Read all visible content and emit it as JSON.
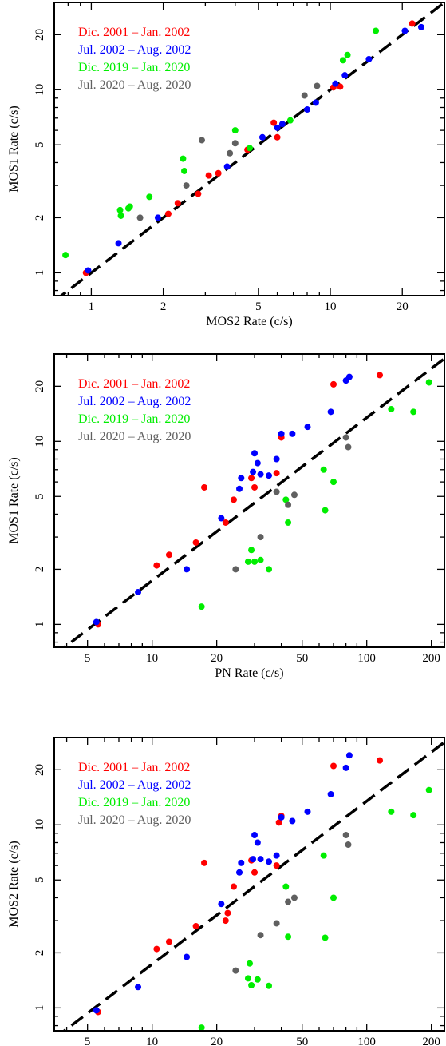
{
  "chart_data": [
    {
      "type": "scatter",
      "xlabel": "MOS2 Rate (c/s)",
      "ylabel": "MOS1 Rate (c/s)",
      "xscale": "log",
      "yscale": "log",
      "xlim": [
        0.7,
        30
      ],
      "ylim": [
        0.75,
        30
      ],
      "xticks": [
        1,
        2,
        5,
        10,
        20
      ],
      "yticks": [
        1,
        2,
        5,
        10,
        20
      ],
      "reference_line": "y = x",
      "grid": false,
      "legend_position": "top-left",
      "series": [
        {
          "name": "Dic. 2001 – Jan. 2002",
          "color": "#ff0000",
          "x": [
            0.95,
            2.1,
            2.3,
            2.8,
            3.1,
            3.4,
            4.5,
            5.8,
            6.0,
            10.3,
            11.0,
            22.0
          ],
          "y": [
            1.0,
            2.1,
            2.4,
            2.7,
            3.4,
            3.5,
            4.7,
            6.6,
            5.5,
            10.3,
            10.4,
            23.0
          ]
        },
        {
          "name": "Jul. 2002 – Aug. 2002",
          "color": "#0000ff",
          "x": [
            0.97,
            1.3,
            1.9,
            3.7,
            5.2,
            6.0,
            6.3,
            8.0,
            8.7,
            10.5,
            11.5,
            14.5,
            20.5,
            24.0
          ],
          "y": [
            1.03,
            1.45,
            2.0,
            3.8,
            5.5,
            6.2,
            6.5,
            7.8,
            8.5,
            10.8,
            12.0,
            14.7,
            21.0,
            22.0
          ]
        },
        {
          "name": "Dic. 2019 – Jan. 2020",
          "color": "#00ee00",
          "x": [
            0.78,
            1.32,
            1.33,
            1.43,
            1.45,
            1.75,
            2.42,
            2.45,
            4.0,
            4.6,
            6.8,
            11.3,
            11.8,
            15.5
          ],
          "y": [
            1.25,
            2.2,
            2.05,
            2.25,
            2.3,
            2.6,
            4.2,
            3.6,
            6.0,
            4.8,
            6.8,
            14.5,
            15.5,
            21.0
          ]
        },
        {
          "name": "Jul. 2020 – Aug. 2020",
          "color": "#606060",
          "x": [
            1.6,
            2.5,
            2.9,
            3.8,
            4.0,
            7.8,
            8.8
          ],
          "y": [
            2.0,
            3.0,
            5.3,
            4.5,
            5.1,
            9.3,
            10.5
          ]
        }
      ]
    },
    {
      "type": "scatter",
      "xlabel": "PN Rate (c/s)",
      "ylabel": "MOS1 Rate (c/s)",
      "xscale": "log",
      "yscale": "log",
      "xlim": [
        3.5,
        230
      ],
      "ylim": [
        0.75,
        30
      ],
      "xticks": [
        5,
        10,
        20,
        50,
        100,
        200
      ],
      "yticks": [
        1,
        2,
        5,
        10,
        20
      ],
      "reference_line": "linear fit",
      "grid": false,
      "legend_position": "top-left",
      "series": [
        {
          "name": "Dic. 2001 – Jan. 2002",
          "color": "#ff0000",
          "x": [
            5.6,
            10.5,
            12.0,
            16.0,
            17.5,
            22.0,
            24.0,
            29.0,
            30.0,
            38.0,
            40.0,
            70.0,
            115.0
          ],
          "y": [
            1.0,
            2.1,
            2.4,
            2.8,
            5.6,
            3.6,
            4.8,
            6.3,
            5.6,
            6.7,
            10.5,
            20.5,
            23.0
          ]
        },
        {
          "name": "Jul. 2002 – Aug. 2002",
          "color": "#0000ff",
          "x": [
            5.5,
            8.6,
            14.5,
            21.0,
            25.5,
            26.0,
            29.5,
            30.0,
            31.0,
            32.0,
            35.0,
            38.0,
            40.0,
            45.0,
            53.0,
            68.0,
            80.0,
            83.0
          ],
          "y": [
            1.03,
            1.5,
            2.0,
            3.8,
            5.5,
            6.3,
            6.8,
            8.6,
            7.6,
            6.6,
            6.5,
            8.0,
            11.0,
            11.0,
            12.0,
            14.5,
            21.5,
            22.5
          ]
        },
        {
          "name": "Dic. 2019 – Jan. 2020",
          "color": "#00ee00",
          "x": [
            17.0,
            28.0,
            29.0,
            30.0,
            32.0,
            35.0,
            42.0,
            43.0,
            63.0,
            64.0,
            70.0,
            130.0,
            165.0,
            195.0
          ],
          "y": [
            1.25,
            2.2,
            2.55,
            2.2,
            2.25,
            2.0,
            4.8,
            3.6,
            7.0,
            4.2,
            6.0,
            15.0,
            14.5,
            21.0
          ]
        },
        {
          "name": "Jul. 2020 – Aug. 2020",
          "color": "#606060",
          "x": [
            24.5,
            32.0,
            38.0,
            43.0,
            46.0,
            80.0,
            82.0
          ],
          "y": [
            2.0,
            3.0,
            5.3,
            4.5,
            5.1,
            10.5,
            9.3
          ]
        }
      ]
    },
    {
      "type": "scatter",
      "xlabel": "PN Rate (c/s)",
      "ylabel": "MOS2 Rate (c/s)",
      "xscale": "log",
      "yscale": "log",
      "xlim": [
        3.5,
        230
      ],
      "ylim": [
        0.75,
        30
      ],
      "xticks": [
        5,
        10,
        20,
        50,
        100,
        200
      ],
      "yticks": [
        1,
        2,
        5,
        10,
        20
      ],
      "reference_line": "linear fit",
      "grid": false,
      "legend_position": "top-left",
      "series": [
        {
          "name": "Dic. 2001 – Jan. 2002",
          "color": "#ff0000",
          "x": [
            5.6,
            10.5,
            12.0,
            16.0,
            17.5,
            22.0,
            22.5,
            24.0,
            29.0,
            30.0,
            38.0,
            39.0,
            40.0,
            70.0,
            115.0
          ],
          "y": [
            0.95,
            2.1,
            2.3,
            2.8,
            6.2,
            3.0,
            3.3,
            4.6,
            6.4,
            5.5,
            6.0,
            10.3,
            11.2,
            21.0,
            22.5
          ]
        },
        {
          "name": "Jul. 2002 – Aug. 2002",
          "color": "#0000ff",
          "x": [
            5.5,
            8.6,
            14.5,
            21.0,
            25.5,
            26.0,
            29.5,
            30.0,
            31.0,
            32.0,
            35.0,
            38.0,
            40.0,
            45.0,
            53.0,
            68.0,
            80.0,
            83.0
          ],
          "y": [
            0.97,
            1.3,
            1.9,
            3.7,
            5.5,
            6.2,
            6.5,
            8.8,
            8.0,
            6.5,
            6.3,
            6.8,
            11.0,
            10.5,
            11.8,
            14.7,
            20.5,
            24.0
          ]
        },
        {
          "name": "Dic. 2019 – Jan. 2020",
          "color": "#00ee00",
          "x": [
            17.0,
            28.0,
            28.5,
            29.0,
            31.0,
            35.0,
            42.0,
            43.0,
            63.0,
            64.0,
            70.0,
            130.0,
            165.0,
            195.0
          ],
          "y": [
            0.78,
            1.45,
            1.75,
            1.33,
            1.43,
            1.32,
            4.6,
            2.45,
            6.8,
            2.42,
            4.0,
            11.8,
            11.3,
            15.5
          ]
        },
        {
          "name": "Jul. 2020 – Aug. 2020",
          "color": "#606060",
          "x": [
            24.5,
            32.0,
            38.0,
            43.0,
            46.0,
            80.0,
            82.0
          ],
          "y": [
            1.6,
            2.5,
            2.9,
            3.8,
            4.0,
            8.8,
            7.8
          ]
        }
      ]
    }
  ]
}
